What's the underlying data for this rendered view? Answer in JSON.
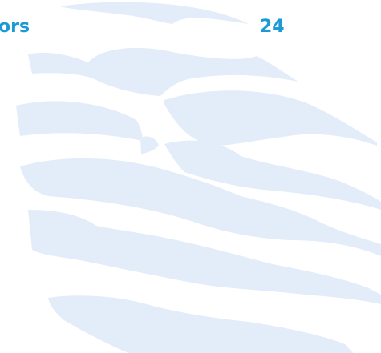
{
  "header": {
    "left_text": "ors",
    "right_text": "24"
  }
}
